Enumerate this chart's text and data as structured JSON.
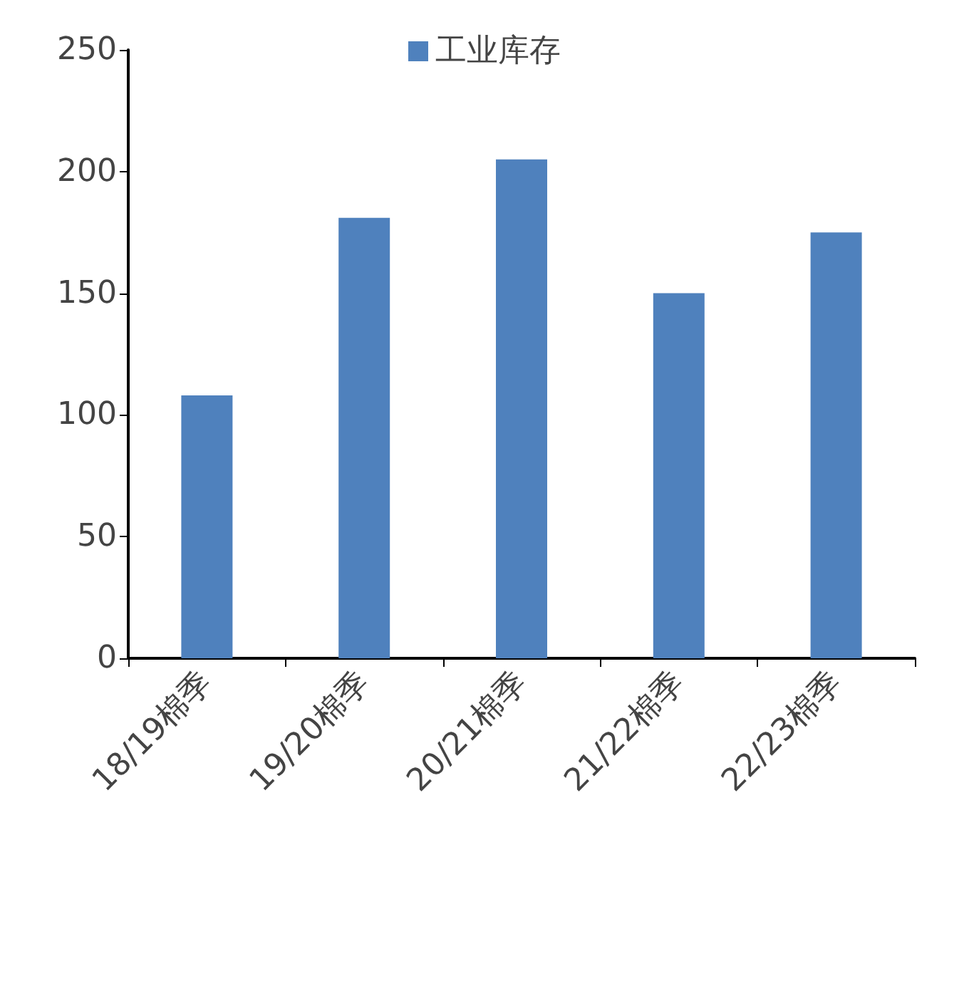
{
  "chart_data": {
    "type": "bar",
    "categories": [
      "18/19棉季",
      "19/20棉季",
      "20/21棉季",
      "21/22棉季",
      "22/23棉季"
    ],
    "series": [
      {
        "name": "工业库存",
        "color": "#4f81bd",
        "values": [
          108,
          181,
          205,
          150,
          175
        ]
      }
    ],
    "ylim": [
      0,
      250
    ],
    "yticks": [
      0,
      50,
      100,
      150,
      200,
      250
    ],
    "grid": false,
    "legend": "top"
  }
}
